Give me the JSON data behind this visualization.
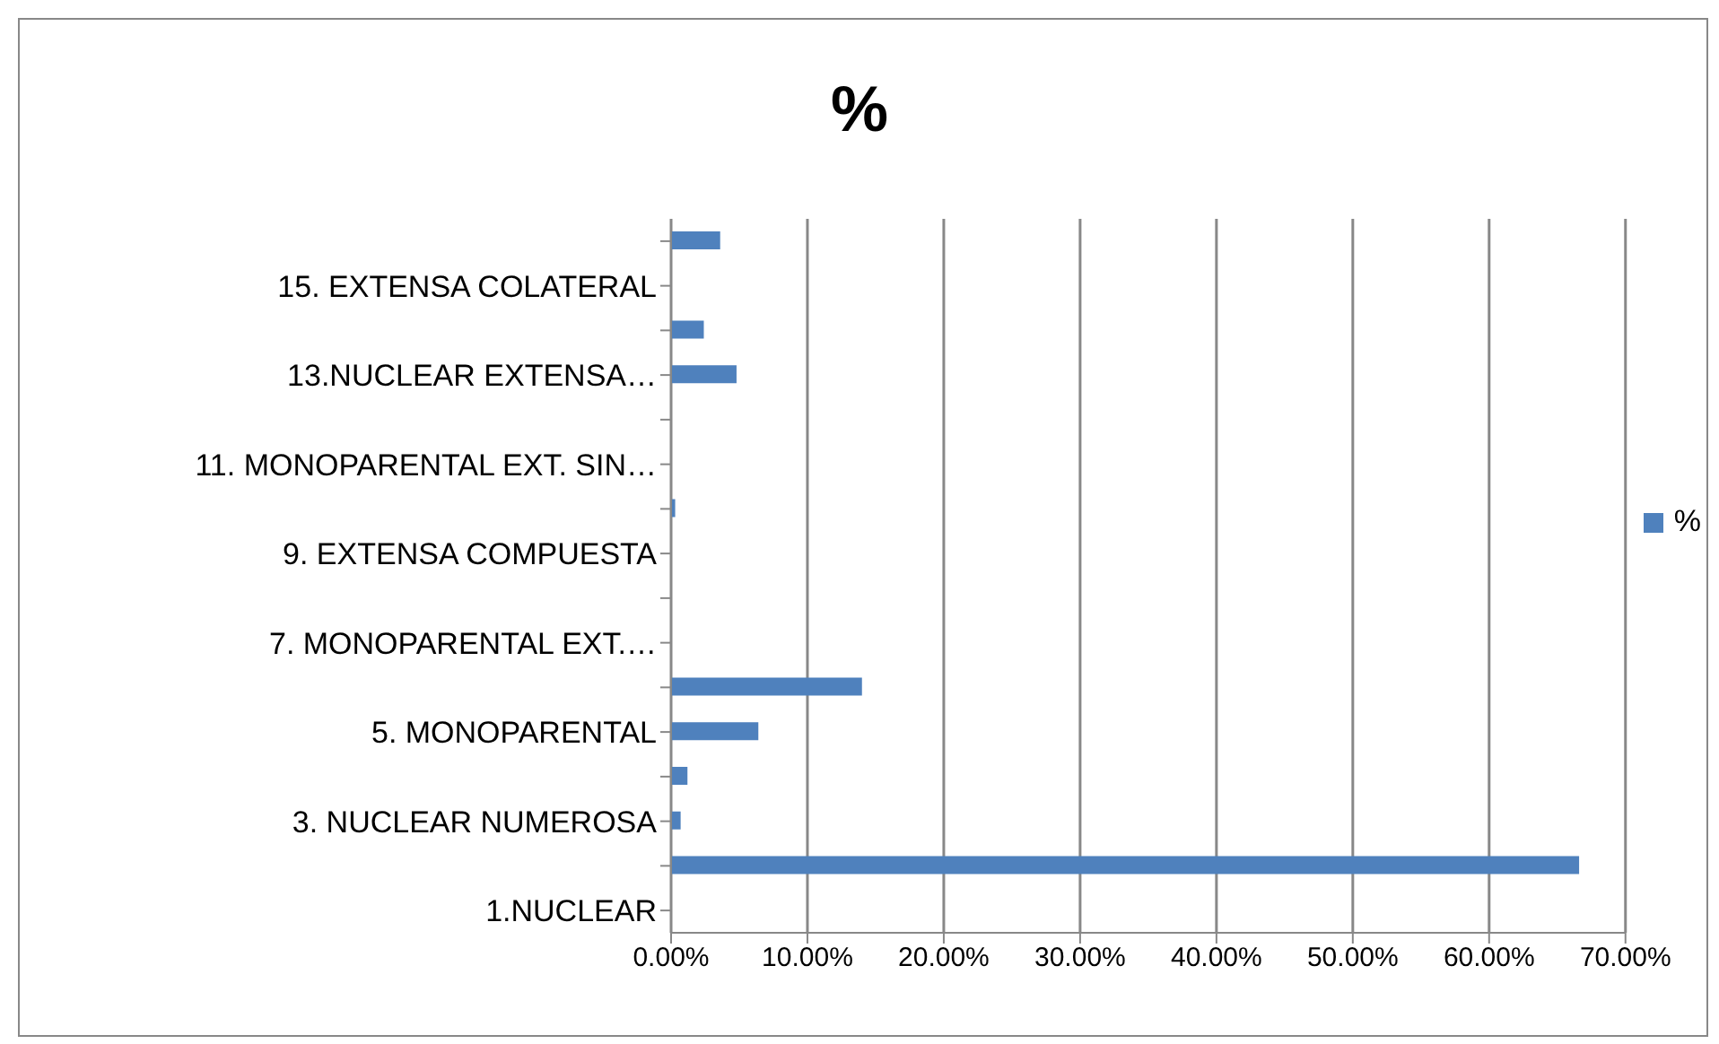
{
  "chart_data": {
    "type": "bar",
    "orientation": "horizontal",
    "title": "%",
    "categories": [
      null,
      "15. EXTENSA COLATERAL",
      null,
      "13.NUCLEAR EXTENSA…",
      null,
      "11. MONOPARENTAL EXT. SIN…",
      null,
      "9. EXTENSA COMPUESTA",
      null,
      "7. MONOPARENTAL EXT.…",
      null,
      "5. MONOPARENTAL",
      null,
      "3. NUCLEAR NUMEROSA",
      null,
      "1.NUCLEAR"
    ],
    "series": [
      {
        "name": "%",
        "color": "#4f81bd",
        "values": [
          3.6,
          0,
          2.4,
          4.8,
          0,
          0,
          0.3,
          0,
          0,
          0,
          14.0,
          6.4,
          1.2,
          0.7,
          66.6,
          0
        ]
      }
    ],
    "xlim": [
      0,
      70
    ],
    "xticks": [
      {
        "value": 0,
        "label": "0.00%"
      },
      {
        "value": 10,
        "label": "10.00%"
      },
      {
        "value": 20,
        "label": "20.00%"
      },
      {
        "value": 30,
        "label": "30.00%"
      },
      {
        "value": 40,
        "label": "40.00%"
      },
      {
        "value": 50,
        "label": "50.00%"
      },
      {
        "value": 60,
        "label": "60.00%"
      },
      {
        "value": 70,
        "label": "70.00%"
      }
    ],
    "grid": "x",
    "legend": "right"
  }
}
